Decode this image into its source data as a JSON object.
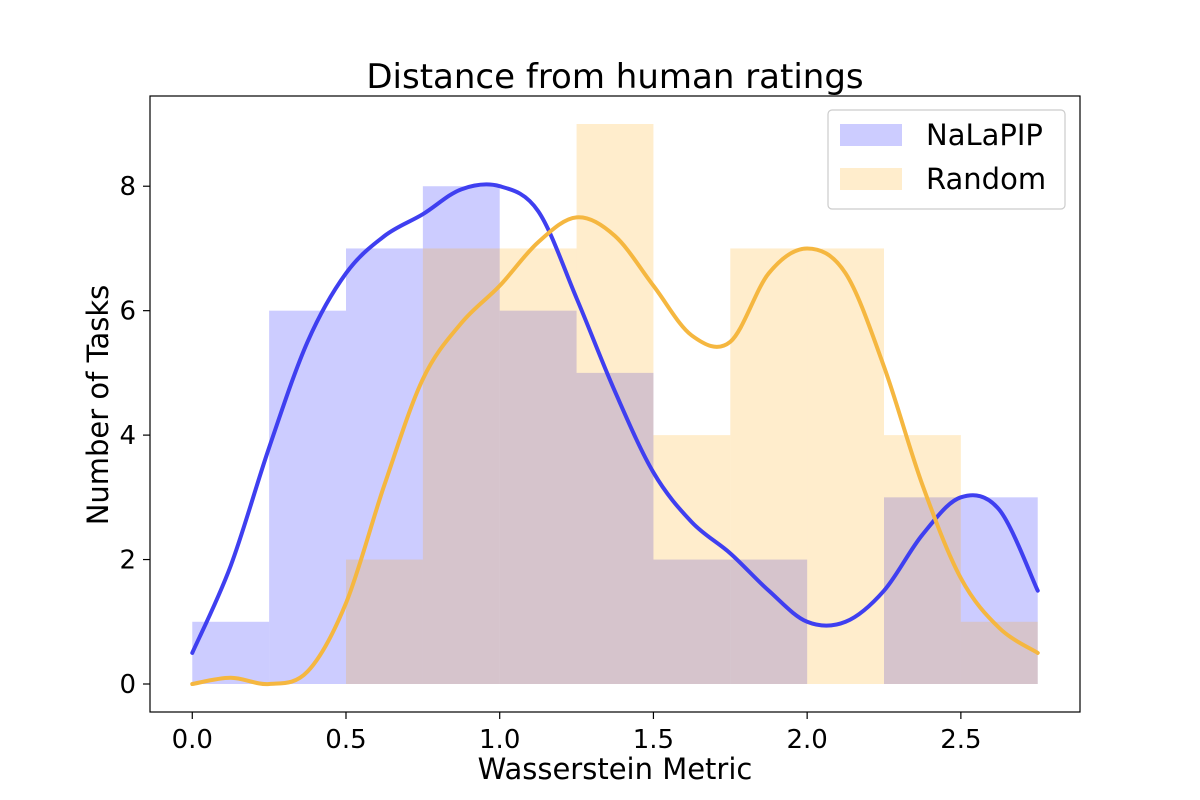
{
  "chart_data": {
    "type": "bar",
    "title": "Distance from human ratings",
    "xlabel": "Wasserstein Metric",
    "ylabel": "Number of Tasks",
    "xlim": [
      -0.1375,
      2.8875
    ],
    "ylim": [
      -0.45,
      9.45
    ],
    "xticks": [
      0.0,
      0.5,
      1.0,
      1.5,
      2.0,
      2.5
    ],
    "xtick_labels": [
      "0.0",
      "0.5",
      "1.0",
      "1.5",
      "2.0",
      "2.5"
    ],
    "yticks": [
      0,
      2,
      4,
      6,
      8
    ],
    "ytick_labels": [
      "0",
      "2",
      "4",
      "6",
      "8"
    ],
    "bin_edges": [
      0.0,
      0.25,
      0.5,
      0.75,
      1.0,
      1.25,
      1.5,
      1.75,
      2.0,
      2.25,
      2.5,
      2.75
    ],
    "grid": false,
    "legend_position": "top-right",
    "series": [
      {
        "name": "NaLaPIP",
        "hist_color": "#0000ff",
        "hist_alpha": 0.2,
        "kde_color": "#3f3ff0",
        "counts": [
          1,
          6,
          7,
          8,
          6,
          5,
          2,
          2,
          0,
          3,
          3
        ],
        "kde": {
          "x": [
            0.0,
            0.125,
            0.25,
            0.375,
            0.5,
            0.625,
            0.75,
            0.875,
            1.0,
            1.125,
            1.25,
            1.375,
            1.5,
            1.625,
            1.75,
            1.875,
            2.0,
            2.125,
            2.25,
            2.375,
            2.5,
            2.625,
            2.75
          ],
          "y": [
            0.5,
            1.9,
            3.8,
            5.5,
            6.6,
            7.2,
            7.55,
            7.95,
            8.0,
            7.6,
            6.2,
            4.7,
            3.4,
            2.6,
            2.1,
            1.5,
            1.0,
            1.0,
            1.5,
            2.4,
            3.0,
            2.8,
            1.5
          ]
        }
      },
      {
        "name": "Random",
        "hist_color": "#ffa500",
        "hist_alpha": 0.2,
        "kde_color": "#f5b740",
        "counts": [
          0,
          0,
          2,
          7,
          7,
          9,
          4,
          7,
          7,
          4,
          1
        ],
        "kde": {
          "x": [
            0.0,
            0.125,
            0.25,
            0.375,
            0.5,
            0.625,
            0.75,
            0.875,
            1.0,
            1.125,
            1.25,
            1.375,
            1.5,
            1.625,
            1.75,
            1.875,
            2.0,
            2.125,
            2.25,
            2.375,
            2.5,
            2.625,
            2.75
          ],
          "y": [
            0.0,
            0.1,
            0.0,
            0.2,
            1.3,
            3.2,
            4.9,
            5.8,
            6.4,
            7.1,
            7.5,
            7.2,
            6.4,
            5.6,
            5.5,
            6.6,
            7.0,
            6.6,
            5.1,
            3.2,
            1.7,
            0.9,
            0.5
          ]
        }
      }
    ]
  }
}
